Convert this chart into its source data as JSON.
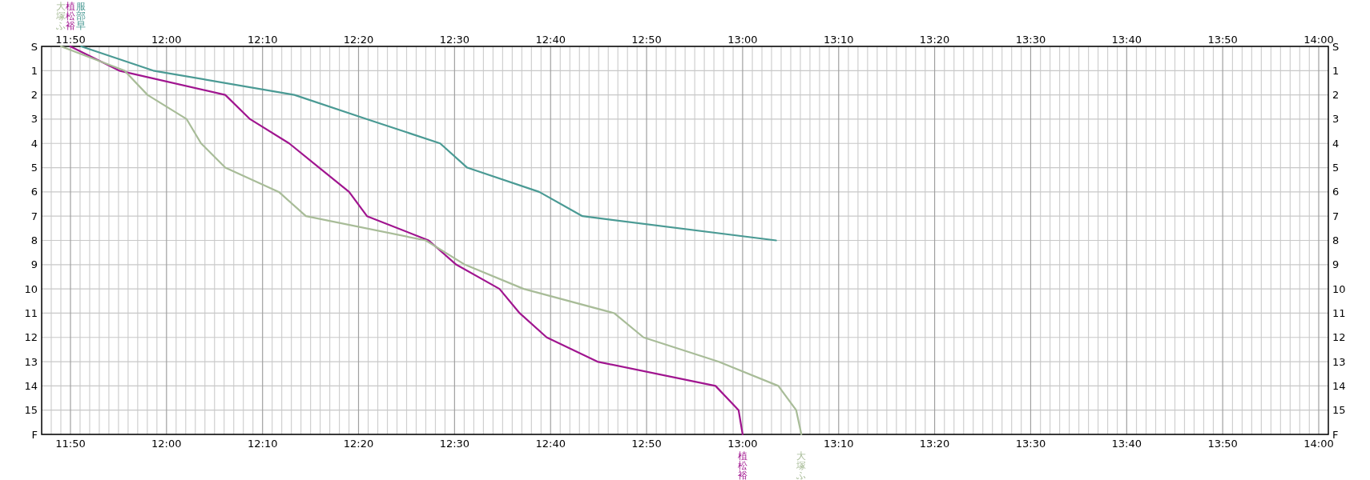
{
  "chart_data": {
    "type": "line",
    "xlim": [
      11.7833,
      14.0167
    ],
    "ylim": [
      16,
      0
    ],
    "xticks": [
      {
        "value": 11.8333,
        "label": "11:50"
      },
      {
        "value": 12.0,
        "label": "12:00"
      },
      {
        "value": 12.1667,
        "label": "12:10"
      },
      {
        "value": 12.3333,
        "label": "12:20"
      },
      {
        "value": 12.5,
        "label": "12:30"
      },
      {
        "value": 12.6667,
        "label": "12:40"
      },
      {
        "value": 12.8333,
        "label": "12:50"
      },
      {
        "value": 13.0,
        "label": "13:00"
      },
      {
        "value": 13.1667,
        "label": "13:10"
      },
      {
        "value": 13.3333,
        "label": "13:20"
      },
      {
        "value": 13.5,
        "label": "13:30"
      },
      {
        "value": 13.6667,
        "label": "13:40"
      },
      {
        "value": 13.8333,
        "label": "13:50"
      },
      {
        "value": 14.0,
        "label": "14:00"
      }
    ],
    "x2lim": [
      11.7833,
      14.0167
    ],
    "x2ticks": [
      {
        "value": 11.8333,
        "label": "11:50"
      },
      {
        "value": 12.0,
        "label": "12:00"
      },
      {
        "value": 12.1667,
        "label": "12:10"
      },
      {
        "value": 12.3333,
        "label": "12:20"
      },
      {
        "value": 12.5,
        "label": "12:30"
      },
      {
        "value": 12.6667,
        "label": "12:40"
      },
      {
        "value": 12.8333,
        "label": "12:50"
      },
      {
        "value": 13.0,
        "label": "13:00"
      },
      {
        "value": 13.1667,
        "label": "13:10"
      },
      {
        "value": 13.3333,
        "label": "13:20"
      },
      {
        "value": 13.5,
        "label": "13:30"
      },
      {
        "value": 13.6667,
        "label": "13:40"
      },
      {
        "value": 13.8333,
        "label": "13:50"
      },
      {
        "value": 14.0,
        "label": "14:00"
      }
    ],
    "yticks": [
      {
        "value": 0,
        "label": "S"
      },
      1,
      2,
      3,
      4,
      5,
      6,
      7,
      8,
      9,
      10,
      11,
      12,
      13,
      14,
      15,
      {
        "value": 16,
        "label": "F"
      }
    ],
    "y2lim": [
      16,
      0
    ],
    "y2ticks": [
      {
        "value": 0,
        "label": "S"
      },
      1,
      2,
      3,
      4,
      5,
      6,
      7,
      8,
      9,
      10,
      11,
      12,
      13,
      14,
      15,
      {
        "value": 16,
        "label": "F"
      }
    ],
    "grid": true,
    "series": [
      {
        "name": "服部早",
        "color": "#4a9a94",
        "x": [
          11.852,
          11.977,
          12.222,
          12.348,
          12.475,
          12.522,
          12.647,
          12.722,
          13.058
        ],
        "values": [
          0,
          1,
          2,
          3,
          4,
          5,
          6,
          7,
          8
        ]
      },
      {
        "name": "植松裕",
        "color": "#a0158f",
        "x": [
          11.833,
          11.918,
          12.102,
          12.145,
          12.213,
          12.265,
          12.317,
          12.348,
          12.455,
          12.503,
          12.578,
          12.613,
          12.66,
          12.748,
          12.953,
          12.993,
          13.0
        ],
        "values": [
          0,
          1,
          2,
          3,
          4,
          5,
          6,
          7,
          8,
          9,
          10,
          11,
          12,
          13,
          14,
          15,
          16
        ]
      },
      {
        "name": "大塚ふ",
        "color": "#a8bc98",
        "x": [
          11.817,
          11.927,
          11.967,
          12.035,
          12.06,
          12.102,
          12.195,
          12.242,
          12.45,
          12.518,
          12.62,
          12.777,
          12.828,
          12.958,
          13.062,
          13.093,
          13.102
        ],
        "values": [
          0,
          1,
          2,
          3,
          4,
          5,
          6,
          7,
          8,
          9,
          10,
          11,
          12,
          13,
          14,
          15,
          16
        ]
      }
    ]
  }
}
